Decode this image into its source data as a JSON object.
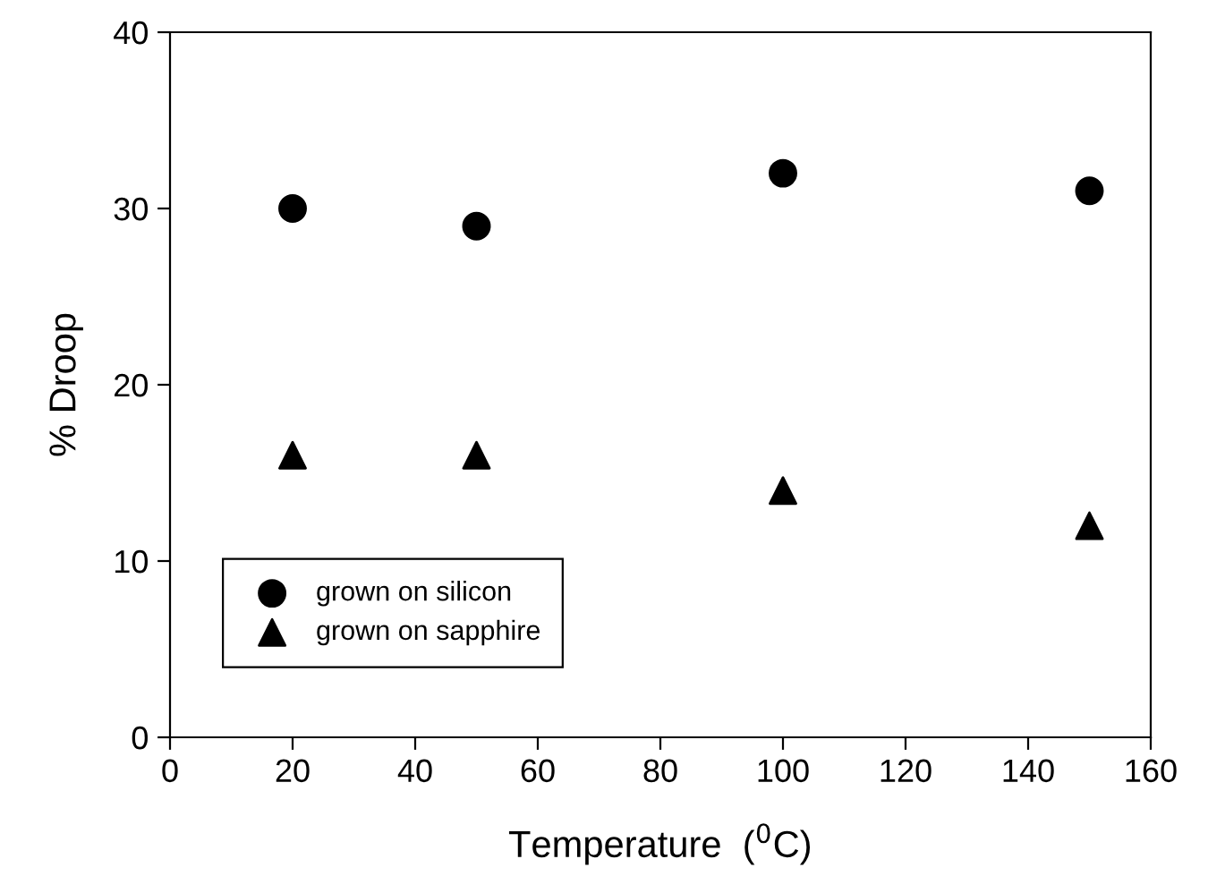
{
  "chart_data": {
    "type": "scatter",
    "xlabel": "Temperature  ($^{0}$C)",
    "ylabel": "% Droop",
    "x": [
      20,
      50,
      100,
      150
    ],
    "series": [
      {
        "name": "grown on silicon",
        "color": "#000000",
        "marker": "circle",
        "values": [
          30,
          29,
          32,
          31
        ]
      },
      {
        "name": "grown on sapphire",
        "color": "#000000",
        "marker": "triangle",
        "values": [
          16,
          16,
          14,
          12
        ]
      }
    ],
    "xlim": [
      0,
      160
    ],
    "xticks": [
      0,
      20,
      40,
      60,
      80,
      100,
      120,
      140,
      160
    ],
    "ylim": [
      0,
      40
    ],
    "yticks": [
      0,
      10,
      20,
      30,
      40
    ],
    "grid": false,
    "legend": "bottom left"
  }
}
